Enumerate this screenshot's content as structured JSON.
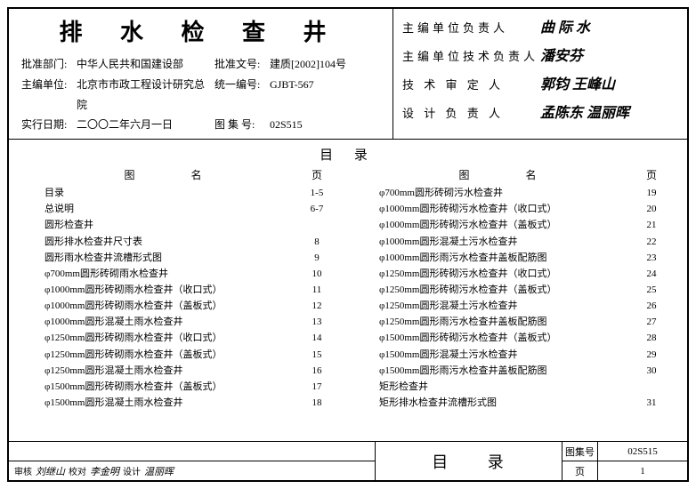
{
  "header": {
    "title": "排 水 检 查 井",
    "rows": [
      {
        "lab": "批准部门:",
        "val1": "中华人民共和国建设部",
        "lab2": "批准文号:",
        "val2": "建质[2002]104号"
      },
      {
        "lab": "主编单位:",
        "val1": "北京市市政工程设计研究总院",
        "lab2": "统一编号:",
        "val2": "GJBT-567"
      },
      {
        "lab": "实行日期:",
        "val1": "二〇〇二年六月一日",
        "lab2": "图 集 号:",
        "val2": "02S515"
      }
    ],
    "signatures": [
      {
        "role": "主编单位负责人",
        "sig": "曲 际 水"
      },
      {
        "role": "主编单位技术负责人",
        "sig": "潘安芬"
      },
      {
        "role": "技 术 审 定 人",
        "sig": "郭钧 王峰山"
      },
      {
        "role": "设 计 负 责 人",
        "sig": "孟陈东 温丽晖"
      }
    ]
  },
  "toc": {
    "heading": "目 录",
    "col_hd1": "图 名",
    "col_hd2": "页",
    "left": [
      {
        "it": "目录",
        "pg": "1-5"
      },
      {
        "it": "总说明",
        "pg": "6-7"
      },
      {
        "it": "圆形检查井",
        "pg": ""
      },
      {
        "it": "圆形排水检查井尺寸表",
        "pg": "8"
      },
      {
        "it": "圆形雨水检查井流槽形式图",
        "pg": "9"
      },
      {
        "it": "φ700mm圆形砖砌雨水检查井",
        "pg": "10"
      },
      {
        "it": "φ1000mm圆形砖砌雨水检查井（收口式）",
        "pg": "11"
      },
      {
        "it": "φ1000mm圆形砖砌雨水检查井（盖板式）",
        "pg": "12"
      },
      {
        "it": "φ1000mm圆形混凝土雨水检查井",
        "pg": "13"
      },
      {
        "it": "φ1250mm圆形砖砌雨水检查井（收口式）",
        "pg": "14"
      },
      {
        "it": "φ1250mm圆形砖砌雨水检查井（盖板式）",
        "pg": "15"
      },
      {
        "it": "φ1250mm圆形混凝土雨水检查井",
        "pg": "16"
      },
      {
        "it": "φ1500mm圆形砖砌雨水检查井（盖板式）",
        "pg": "17"
      },
      {
        "it": "φ1500mm圆形混凝土雨水检查井",
        "pg": "18"
      }
    ],
    "right": [
      {
        "it": "φ700mm圆形砖砌污水检查井",
        "pg": "19"
      },
      {
        "it": "φ1000mm圆形砖砌污水检查井（收口式）",
        "pg": "20"
      },
      {
        "it": "φ1000mm圆形砖砌污水检查井（盖板式）",
        "pg": "21"
      },
      {
        "it": "φ1000mm圆形混凝土污水检查井",
        "pg": "22"
      },
      {
        "it": "φ1000mm圆形雨污水检查井盖板配筋图",
        "pg": "23"
      },
      {
        "it": "φ1250mm圆形砖砌污水检查井（收口式）",
        "pg": "24"
      },
      {
        "it": "φ1250mm圆形砖砌污水检查井（盖板式）",
        "pg": "25"
      },
      {
        "it": "φ1250mm圆形混凝土污水检查井",
        "pg": "26"
      },
      {
        "it": "φ1250mm圆形雨污水检查井盖板配筋图",
        "pg": "27"
      },
      {
        "it": "φ1500mm圆形砖砌污水检查井（盖板式）",
        "pg": "28"
      },
      {
        "it": "φ1500mm圆形混凝土污水检查井",
        "pg": "29"
      },
      {
        "it": "φ1500mm圆形雨污水检查井盖板配筋图",
        "pg": "30"
      },
      {
        "it": "矩形检查井",
        "pg": ""
      },
      {
        "it": "矩形排水检查井流槽形式图",
        "pg": "31"
      }
    ]
  },
  "footer": {
    "check_lbl": "审核",
    "check_sig": "刘继山",
    "proof_lbl": "校对",
    "proof_sig": "李金明",
    "design_lbl": "设计",
    "design_sig": "温丽晖",
    "mid": "目 录",
    "set_lbl": "图集号",
    "set_val": "02S515",
    "page_lbl": "页",
    "page_val": "1"
  }
}
